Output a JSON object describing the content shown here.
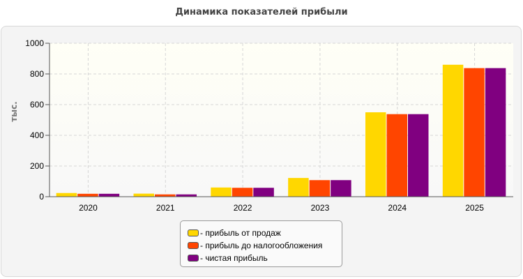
{
  "chart_data": {
    "type": "bar",
    "title": "Динамика показателей прибыли",
    "ylabel": "тыс.",
    "xlabel": "",
    "ylim": [
      0,
      1000
    ],
    "yticks": [
      0,
      200,
      400,
      600,
      800,
      1000
    ],
    "grid": true,
    "legend_position": "bottom",
    "categories": [
      "2020",
      "2021",
      "2022",
      "2023",
      "2024",
      "2025"
    ],
    "series": [
      {
        "name": "прибыль от продаж",
        "color": "#ffd700",
        "values": [
          24,
          20,
          60,
          122,
          550,
          860
        ]
      },
      {
        "name": "прибыль до налогообложения",
        "color": "#ff4500",
        "values": [
          19,
          15,
          58,
          108,
          538,
          838
        ]
      },
      {
        "name": "чистая прибыль",
        "color": "#800080",
        "values": [
          19,
          15,
          58,
          108,
          538,
          838
        ]
      }
    ]
  },
  "legend": {
    "items": [
      {
        "label": "- прибыль от продаж",
        "color": "#ffd700"
      },
      {
        "label": "- прибыль до налогообложения",
        "color": "#ff4500"
      },
      {
        "label": "- чистая прибыль",
        "color": "#800080"
      }
    ]
  }
}
